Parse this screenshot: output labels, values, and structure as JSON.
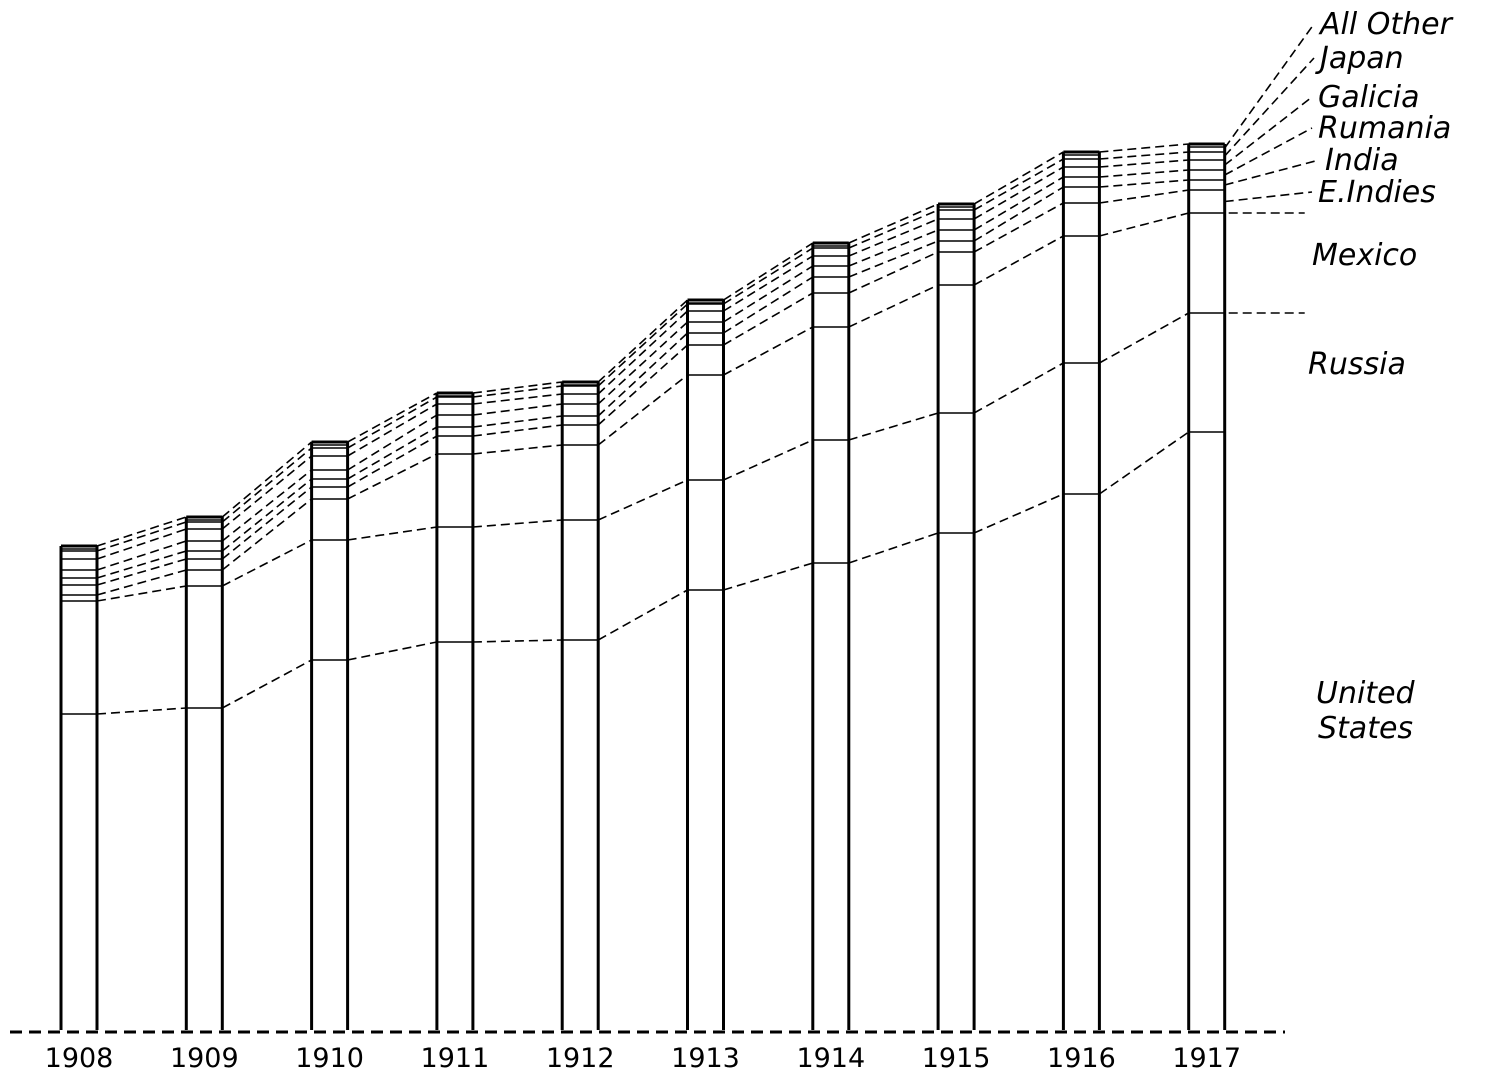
{
  "chart_data": {
    "type": "bar",
    "stacked": true,
    "categories": [
      "1908",
      "1909",
      "1910",
      "1911",
      "1912",
      "1913",
      "1914",
      "1915",
      "1916",
      "1917"
    ],
    "ylim": [
      0,
      900
    ],
    "grid": false,
    "legend_placement": "right",
    "series": [
      {
        "name": "United States",
        "values": [
          316,
          322,
          370,
          388,
          390,
          440,
          467,
          497,
          536,
          598
        ]
      },
      {
        "name": "Russia",
        "values": [
          113,
          122,
          120,
          115,
          120,
          110,
          123,
          120,
          131,
          119
        ]
      },
      {
        "name": "Mexico",
        "values": [
          6,
          16,
          41,
          73,
          75,
          105,
          113,
          128,
          127,
          100
        ]
      },
      {
        "name": "E. Indies",
        "values": [
          10,
          11,
          12,
          18,
          20,
          30,
          34,
          33,
          33,
          23
        ]
      },
      {
        "name": "India",
        "values": [
          7,
          8,
          8,
          9,
          9,
          12,
          16,
          11,
          16,
          10
        ]
      },
      {
        "name": "Rumania",
        "values": [
          8,
          10,
          9,
          12,
          12,
          11,
          11,
          11,
          10,
          10
        ]
      },
      {
        "name": "Galicia",
        "values": [
          11,
          12,
          14,
          11,
          10,
          11,
          10,
          11,
          10,
          10
        ]
      },
      {
        "name": "Japan",
        "values": [
          8,
          7,
          8,
          7,
          8,
          7,
          8,
          9,
          8,
          8
        ]
      },
      {
        "name": "All Other",
        "values": [
          5,
          5,
          6,
          4,
          4,
          4,
          5,
          6,
          7,
          8
        ]
      }
    ],
    "legend": [
      "All Other",
      "Japan",
      "Galicia",
      "Rumania",
      "India",
      "E. Indies",
      "Mexico",
      "Russia",
      "United States"
    ]
  }
}
